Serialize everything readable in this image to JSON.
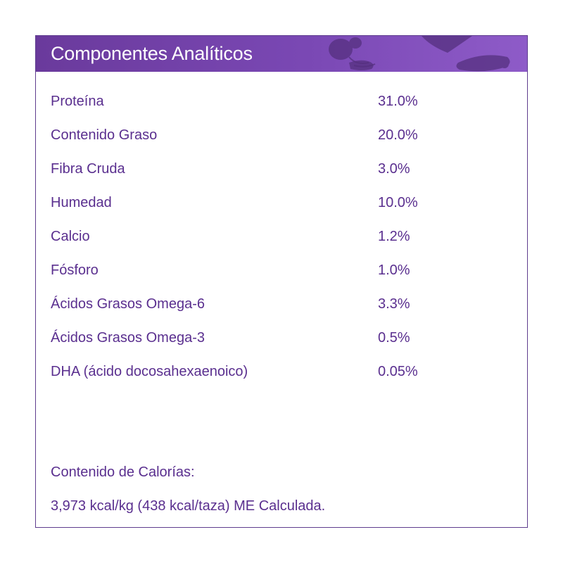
{
  "header": {
    "title": "Componentes Analíticos",
    "background_color": "#6a3a9c",
    "decor_icon": "kibble-bone-icon"
  },
  "analysis": {
    "rows": [
      {
        "label": "Proteína",
        "value": "31.0%"
      },
      {
        "label": "Contenido Graso",
        "value": "20.0%"
      },
      {
        "label": "Fibra Cruda",
        "value": "3.0%"
      },
      {
        "label": "Humedad",
        "value": "10.0%"
      },
      {
        "label": "Calcio",
        "value": "1.2%"
      },
      {
        "label": "Fósforo",
        "value": "1.0%"
      },
      {
        "label": "Ácidos Grasos Omega-6",
        "value": "3.3%"
      },
      {
        "label": "Ácidos Grasos Omega-3",
        "value": "0.5%"
      },
      {
        "label": "DHA (ácido docosahexaenoico)",
        "value": "0.05%"
      }
    ]
  },
  "calories": {
    "title": "Contenido de Calorías:",
    "text": "3,973 kcal/kg (438 kcal/taza) ME Calculada."
  },
  "colors": {
    "text": "#5a2f8f",
    "border": "#5e3d8e"
  }
}
